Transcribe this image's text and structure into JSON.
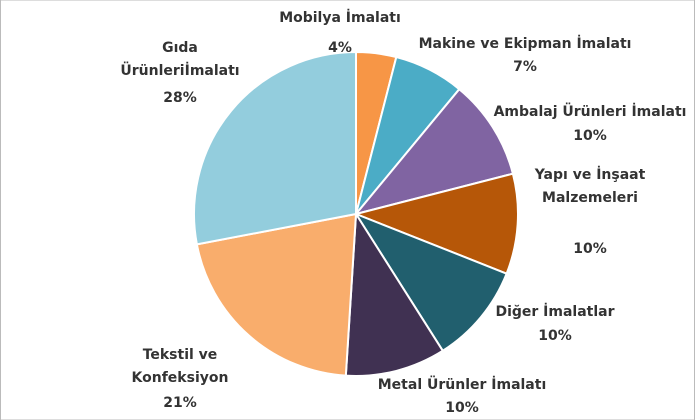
{
  "chart_data": {
    "type": "pie",
    "categories": [
      [
        "Mobilya İmalatı"
      ],
      [
        "Makine ve Ekipman İmalatı"
      ],
      [
        "Ambalaj Ürünleri İmalatı"
      ],
      [
        "Yapı ve İnşaat",
        "Malzemeleri"
      ],
      [
        "Diğer İmalatlar"
      ],
      [
        "Metal Ürünler İmalatı"
      ],
      [
        "Tekstil ve",
        "Konfeksiyon"
      ],
      [
        "Gıda",
        "Ürünleriİmalatı"
      ]
    ],
    "values": [
      4,
      7,
      10,
      10,
      10,
      10,
      21,
      28
    ],
    "value_labels": [
      "4%",
      "7%",
      "10%",
      "10%",
      "10%",
      "10%",
      "21%",
      "28%"
    ],
    "colors": [
      "#f79646",
      "#4bacc6",
      "#8064a2",
      "#b65708",
      "#215f6e",
      "#403152",
      "#f9ad6c",
      "#93cddd"
    ]
  }
}
